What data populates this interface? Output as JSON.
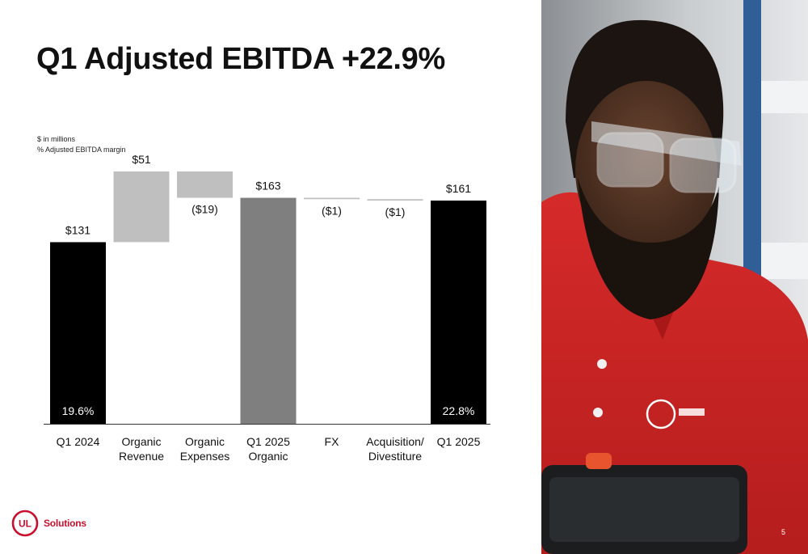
{
  "slide": {
    "title": "Q1 Adjusted EBITDA +22.9%",
    "notes": [
      "$ in millions",
      "% Adjusted EBITDA margin"
    ],
    "logo_text": "Solutions",
    "logo_mark": "UL",
    "page_number": "5"
  },
  "chart_data": {
    "type": "bar",
    "subtype": "waterfall",
    "units": "$ in millions",
    "categories": [
      {
        "lines": [
          "Q1 2024"
        ]
      },
      {
        "lines": [
          "Organic",
          "Revenue"
        ]
      },
      {
        "lines": [
          "Organic",
          "Expenses"
        ]
      },
      {
        "lines": [
          "Q1 2025",
          "Organic"
        ]
      },
      {
        "lines": [
          "FX"
        ]
      },
      {
        "lines": [
          "Acquisition/",
          "Divestiture"
        ]
      },
      {
        "lines": [
          "Q1 2025"
        ]
      }
    ],
    "values": [
      131,
      51,
      -19,
      163,
      -1,
      -1,
      161
    ],
    "kinds": [
      "total",
      "delta",
      "delta",
      "total",
      "delta",
      "delta",
      "total"
    ],
    "value_labels": [
      "$131",
      "$51",
      "($19)",
      "$163",
      "($1)",
      "($1)",
      "$161"
    ],
    "margin_labels": [
      "19.6%",
      "",
      "",
      "",
      "",
      "",
      "22.8%"
    ],
    "colors": [
      "#000000",
      "#bfbfbf",
      "#bfbfbf",
      "#7f7f7f",
      "#bfbfbf",
      "#bfbfbf",
      "#000000"
    ],
    "ylim": [
      0,
      175
    ],
    "grid": false,
    "legend": "none"
  },
  "brand": {
    "accent": "#c8102e"
  }
}
